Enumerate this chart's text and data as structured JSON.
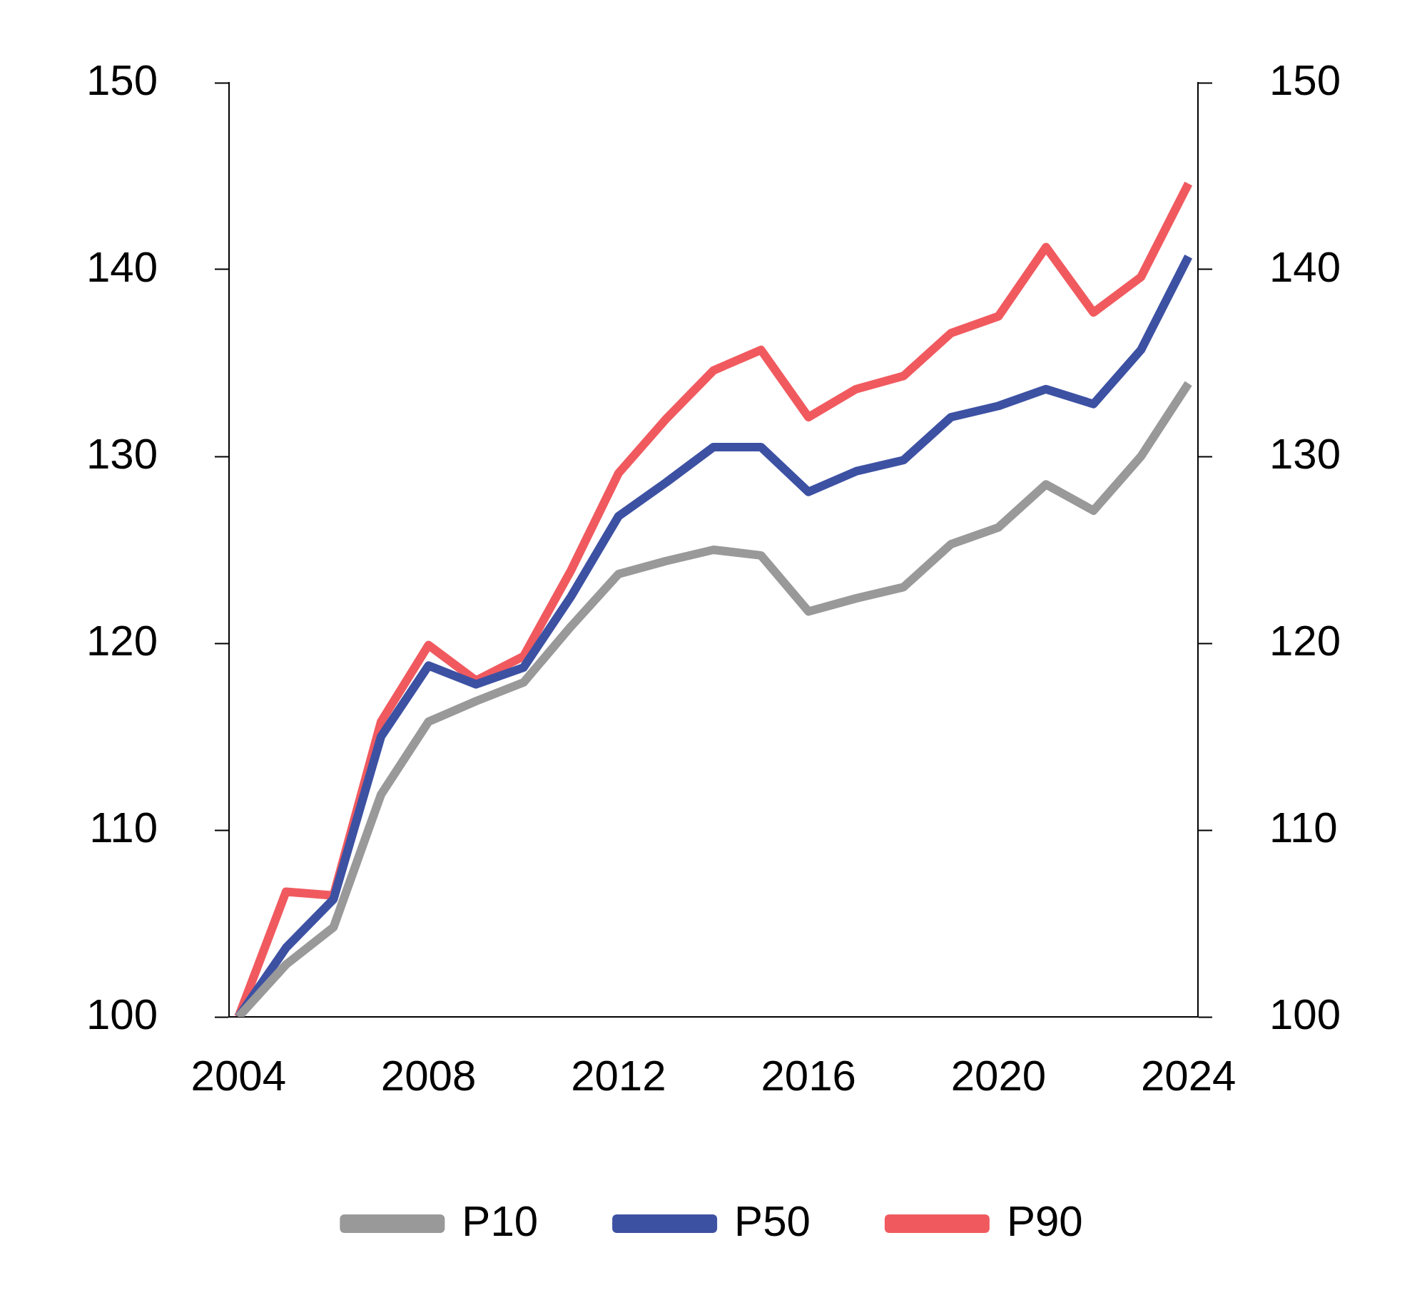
{
  "chart_data": {
    "type": "line",
    "x": [
      2004,
      2005,
      2006,
      2007,
      2008,
      2009,
      2010,
      2011,
      2012,
      2013,
      2014,
      2015,
      2016,
      2017,
      2018,
      2019,
      2020,
      2021,
      2022,
      2023,
      2024
    ],
    "series": [
      {
        "name": "P10",
        "color": "#999999",
        "values": [
          100,
          102.8,
          104.8,
          111.9,
          115.8,
          116.9,
          117.9,
          120.9,
          123.7,
          124.4,
          125.0,
          124.7,
          121.7,
          122.4,
          123.0,
          125.3,
          126.2,
          128.5,
          127.1,
          130.0,
          133.9
        ]
      },
      {
        "name": "P50",
        "color": "#3d51a3",
        "values": [
          100,
          103.7,
          106.3,
          115.0,
          118.8,
          117.8,
          118.7,
          122.5,
          126.8,
          128.6,
          130.5,
          130.5,
          128.1,
          129.2,
          129.8,
          132.1,
          132.7,
          133.6,
          132.8,
          135.7,
          140.7
        ]
      },
      {
        "name": "P90",
        "color": "#f05a5f",
        "values": [
          100,
          106.7,
          106.5,
          115.8,
          119.9,
          118.0,
          119.3,
          123.9,
          129.1,
          132.0,
          134.6,
          135.7,
          132.1,
          133.6,
          134.3,
          136.6,
          137.5,
          141.2,
          137.7,
          139.6,
          144.6
        ]
      }
    ],
    "xlim": [
      2003.8,
      2024.2
    ],
    "xticks": [
      2004,
      2008,
      2012,
      2016,
      2020,
      2024
    ],
    "ylim": [
      100,
      150
    ],
    "yticks": [
      100,
      110,
      120,
      130,
      140,
      150
    ],
    "y2lim": [
      100,
      150
    ],
    "y2ticks": [
      100,
      110,
      120,
      130,
      140,
      150
    ],
    "grid": false,
    "legend": "bottom",
    "marker": "none",
    "line_style": "solid"
  }
}
